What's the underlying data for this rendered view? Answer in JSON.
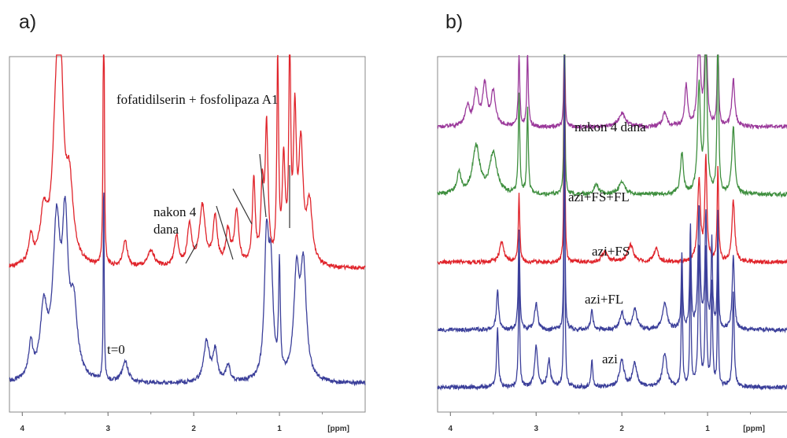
{
  "chart_data": [
    {
      "panel": "a)",
      "type": "line",
      "xlabel": "[ppm]",
      "xlim": [
        4.15,
        0.0
      ],
      "xticks": [
        "4",
        "3",
        "2",
        "1"
      ],
      "annotations": [
        "fofatidilserin + fosfolipaza A1",
        "nakon 4",
        "dana",
        "t=0"
      ],
      "series": [
        {
          "color": "#e0242b",
          "baseline": 0.38,
          "peaks": [
            [
              3.9,
              0.08,
              0.03
            ],
            [
              3.75,
              0.14,
              0.05
            ],
            [
              3.6,
              0.44,
              0.05
            ],
            [
              3.55,
              0.4,
              0.04
            ],
            [
              3.45,
              0.22,
              0.05
            ],
            [
              3.05,
              1.3,
              0.006
            ],
            [
              2.8,
              0.08,
              0.03
            ],
            [
              2.5,
              0.05,
              0.05
            ],
            [
              2.2,
              0.09,
              0.03
            ],
            [
              2.05,
              0.12,
              0.03
            ],
            [
              1.9,
              0.18,
              0.04
            ],
            [
              1.75,
              0.14,
              0.03
            ],
            [
              1.6,
              0.1,
              0.03
            ],
            [
              1.5,
              0.16,
              0.03
            ],
            [
              1.3,
              0.25,
              0.02
            ],
            [
              1.2,
              0.22,
              0.02
            ],
            [
              1.15,
              0.4,
              0.02
            ],
            [
              1.02,
              0.62,
              0.012
            ],
            [
              0.95,
              0.3,
              0.02
            ],
            [
              0.88,
              0.68,
              0.012
            ],
            [
              0.82,
              0.42,
              0.02
            ],
            [
              0.75,
              0.34,
              0.03
            ],
            [
              0.65,
              0.18,
              0.04
            ]
          ]
        },
        {
          "color": "#3b3f9a",
          "baseline": 0.04,
          "peaks": [
            [
              3.9,
              0.1,
              0.03
            ],
            [
              3.75,
              0.2,
              0.05
            ],
            [
              3.6,
              0.44,
              0.05
            ],
            [
              3.5,
              0.42,
              0.04
            ],
            [
              3.4,
              0.2,
              0.05
            ],
            [
              3.05,
              0.62,
              0.006
            ],
            [
              2.8,
              0.06,
              0.04
            ],
            [
              1.85,
              0.12,
              0.04
            ],
            [
              1.75,
              0.09,
              0.03
            ],
            [
              1.6,
              0.05,
              0.03
            ],
            [
              1.15,
              0.4,
              0.03
            ],
            [
              1.1,
              0.3,
              0.03
            ],
            [
              1.0,
              0.32,
              0.012
            ],
            [
              0.8,
              0.3,
              0.04
            ],
            [
              0.72,
              0.32,
              0.04
            ]
          ]
        }
      ]
    },
    {
      "panel": "b)",
      "type": "line",
      "xlabel": "[ppm]",
      "xlim": [
        4.15,
        0.0
      ],
      "xticks": [
        "4",
        "3",
        "2",
        "1"
      ],
      "annotations": [
        "nakon 4 dana",
        "azi+FS+FL",
        "azi+FS",
        "azi+FL",
        "azi"
      ],
      "series": [
        {
          "color": "#9b3a9b",
          "baseline": 0.8,
          "peaks": [
            [
              3.8,
              0.06,
              0.03
            ],
            [
              3.7,
              0.1,
              0.03
            ],
            [
              3.6,
              0.12,
              0.03
            ],
            [
              3.5,
              0.1,
              0.03
            ],
            [
              3.2,
              0.22,
              0.01
            ],
            [
              3.1,
              0.22,
              0.01
            ],
            [
              2.67,
              0.48,
              0.006
            ],
            [
              2.0,
              0.04,
              0.05
            ],
            [
              1.5,
              0.04,
              0.03
            ],
            [
              1.25,
              0.12,
              0.02
            ],
            [
              1.1,
              0.28,
              0.02
            ],
            [
              1.02,
              0.36,
              0.015
            ],
            [
              0.88,
              0.28,
              0.01
            ],
            [
              0.7,
              0.14,
              0.02
            ]
          ]
        },
        {
          "color": "#3f8f3f",
          "baseline": 0.6,
          "peaks": [
            [
              3.9,
              0.06,
              0.03
            ],
            [
              3.7,
              0.14,
              0.05
            ],
            [
              3.5,
              0.12,
              0.05
            ],
            [
              3.2,
              0.3,
              0.01
            ],
            [
              3.1,
              0.26,
              0.01
            ],
            [
              2.67,
              0.7,
              0.006
            ],
            [
              2.3,
              0.03,
              0.03
            ],
            [
              2.0,
              0.04,
              0.04
            ],
            [
              1.3,
              0.12,
              0.02
            ],
            [
              1.1,
              0.32,
              0.02
            ],
            [
              1.02,
              0.5,
              0.015
            ],
            [
              0.88,
              0.52,
              0.01
            ],
            [
              0.7,
              0.2,
              0.02
            ]
          ]
        },
        {
          "color": "#e0242b",
          "baseline": 0.4,
          "peaks": [
            [
              3.4,
              0.06,
              0.03
            ],
            [
              3.2,
              0.2,
              0.01
            ],
            [
              2.67,
              0.8,
              0.006
            ],
            [
              2.2,
              0.03,
              0.04
            ],
            [
              1.9,
              0.05,
              0.04
            ],
            [
              1.6,
              0.04,
              0.03
            ],
            [
              1.1,
              0.24,
              0.02
            ],
            [
              1.02,
              0.3,
              0.015
            ],
            [
              0.88,
              0.28,
              0.01
            ],
            [
              0.7,
              0.18,
              0.02
            ]
          ]
        },
        {
          "color": "#3b3f9a",
          "baseline": 0.2,
          "peaks": [
            [
              3.45,
              0.12,
              0.015
            ],
            [
              3.2,
              0.3,
              0.01
            ],
            [
              3.0,
              0.08,
              0.02
            ],
            [
              2.67,
              0.86,
              0.006
            ],
            [
              2.35,
              0.06,
              0.015
            ],
            [
              2.0,
              0.05,
              0.03
            ],
            [
              1.85,
              0.06,
              0.03
            ],
            [
              1.5,
              0.08,
              0.03
            ],
            [
              1.3,
              0.22,
              0.01
            ],
            [
              1.2,
              0.3,
              0.01
            ],
            [
              1.1,
              0.36,
              0.015
            ],
            [
              1.02,
              0.34,
              0.012
            ],
            [
              0.95,
              0.26,
              0.01
            ],
            [
              0.88,
              0.34,
              0.008
            ],
            [
              0.7,
              0.22,
              0.015
            ]
          ]
        },
        {
          "color": "#3b3f9a",
          "baseline": 0.03,
          "peaks": [
            [
              3.45,
              0.18,
              0.012
            ],
            [
              3.2,
              0.38,
              0.008
            ],
            [
              3.0,
              0.12,
              0.02
            ],
            [
              2.85,
              0.08,
              0.02
            ],
            [
              2.67,
              0.96,
              0.006
            ],
            [
              2.35,
              0.08,
              0.012
            ],
            [
              2.0,
              0.08,
              0.03
            ],
            [
              1.85,
              0.07,
              0.03
            ],
            [
              1.5,
              0.1,
              0.03
            ],
            [
              1.3,
              0.38,
              0.008
            ],
            [
              1.2,
              0.4,
              0.008
            ],
            [
              1.1,
              0.42,
              0.012
            ],
            [
              1.02,
              0.4,
              0.01
            ],
            [
              0.95,
              0.3,
              0.01
            ],
            [
              0.88,
              0.46,
              0.006
            ],
            [
              0.7,
              0.28,
              0.012
            ]
          ]
        }
      ]
    }
  ]
}
